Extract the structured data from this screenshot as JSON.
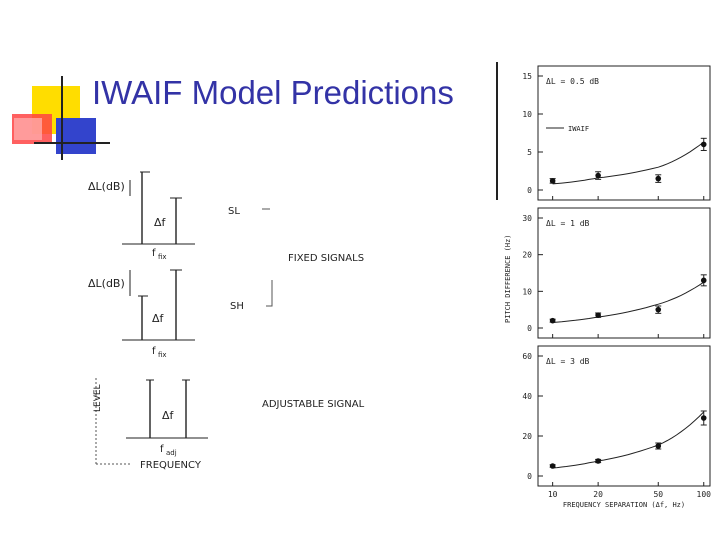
{
  "slide": {
    "title": "IWAIF Model Predictions",
    "colors": {
      "title": "#3333a6",
      "deco_yellow": "#ffdd00",
      "deco_blue": "#3344cc",
      "deco_red": "#ff3333"
    }
  },
  "schematic": {
    "delta_l_label": "ΔL(dB)",
    "delta_f_label": "Δf",
    "f_fix_label": "f",
    "f_fix_sub": "fix",
    "f_adj_label": "f",
    "f_adj_sub": "adj",
    "sl_label": "SL",
    "sh_label": "SH",
    "fixed_signals_label": "FIXED SIGNALS",
    "adjustable_signal_label": "ADJUSTABLE SIGNAL",
    "level_label": "LEVEL",
    "frequency_label": "FREQUENCY"
  },
  "chart_data": [
    {
      "type": "scatter",
      "annotation": "ΔL = 0.5 dB",
      "legend": "IWAIF",
      "x": [
        10,
        20,
        50,
        100
      ],
      "y": [
        1.2,
        1.9,
        1.5,
        6.0
      ],
      "err": [
        0.3,
        0.5,
        0.5,
        0.8
      ],
      "model_curve": {
        "x": [
          10,
          20,
          50,
          100
        ],
        "y": [
          0.8,
          1.6,
          3.0,
          6.3
        ]
      },
      "ylim": [
        0,
        15
      ],
      "yticks": [
        "0",
        "5",
        "10",
        "15"
      ]
    },
    {
      "type": "scatter",
      "annotation": "ΔL = 1 dB",
      "x": [
        10,
        20,
        50,
        100
      ],
      "y": [
        2.0,
        3.5,
        5.0,
        13.0
      ],
      "err": [
        0.4,
        0.6,
        1.0,
        1.5
      ],
      "model_curve": {
        "x": [
          10,
          20,
          50,
          100
        ],
        "y": [
          1.5,
          3.0,
          6.5,
          12.5
        ]
      },
      "ylim": [
        0,
        30
      ],
      "yticks": [
        "0",
        "10",
        "20",
        "30"
      ],
      "ylabel": "PITCH DIFFERENCE (Hz)"
    },
    {
      "type": "scatter",
      "annotation": "ΔL = 3 dB",
      "x": [
        10,
        20,
        50,
        100
      ],
      "y": [
        5.0,
        7.5,
        15.0,
        29.0
      ],
      "err": [
        0.6,
        0.8,
        1.5,
        3.5
      ],
      "model_curve": {
        "x": [
          10,
          20,
          50,
          100
        ],
        "y": [
          4.0,
          7.5,
          15.5,
          32.0
        ]
      },
      "ylim": [
        0,
        60
      ],
      "yticks": [
        "0",
        "20",
        "40",
        "60"
      ],
      "xticks": [
        "10",
        "20",
        "50",
        "100"
      ],
      "xlabel": "FREQUENCY SEPARATION (Δf, Hz)"
    }
  ]
}
